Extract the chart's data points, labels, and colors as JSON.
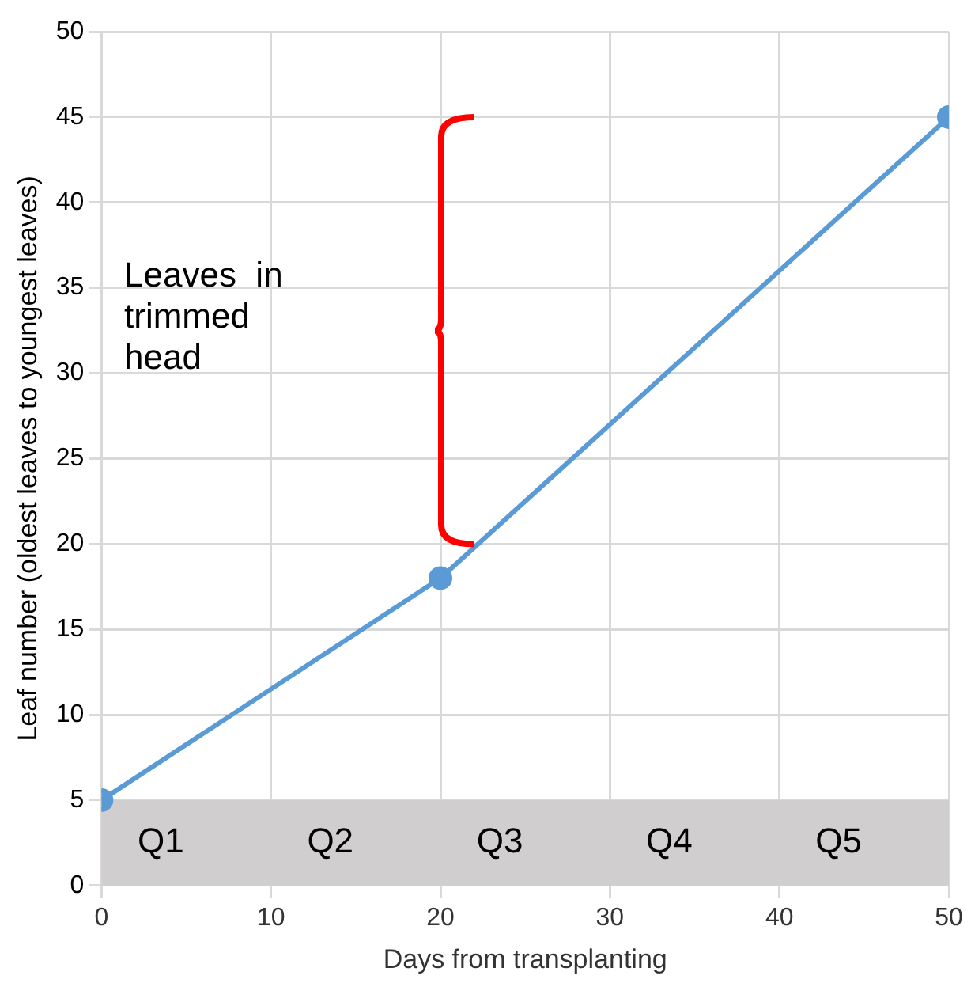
{
  "chart_data": {
    "type": "line",
    "xlabel": "Days from transplanting",
    "ylabel": "Leaf number (oldest leaves to youngest leaves)",
    "x": [
      0,
      20,
      50
    ],
    "series": [
      {
        "color": "#5b9bd5",
        "values": [
          5,
          18,
          45
        ]
      }
    ],
    "xlim": [
      0,
      50
    ],
    "xticks": [
      0,
      10,
      20,
      30,
      40,
      50
    ],
    "ylim": [
      0,
      50
    ],
    "yticks": [
      0,
      5,
      10,
      15,
      20,
      25,
      30,
      35,
      40,
      45,
      50
    ],
    "grid": true,
    "legend": false,
    "marker": "circle",
    "line_style": "solid",
    "bands": [
      {
        "axis": "y",
        "from": 0,
        "to": 5,
        "color": "#d0cece"
      }
    ],
    "annotations": [
      "Q1",
      "Q2",
      "Q3",
      "Q4",
      "Q5",
      "Leaves  in trimmed head"
    ]
  }
}
